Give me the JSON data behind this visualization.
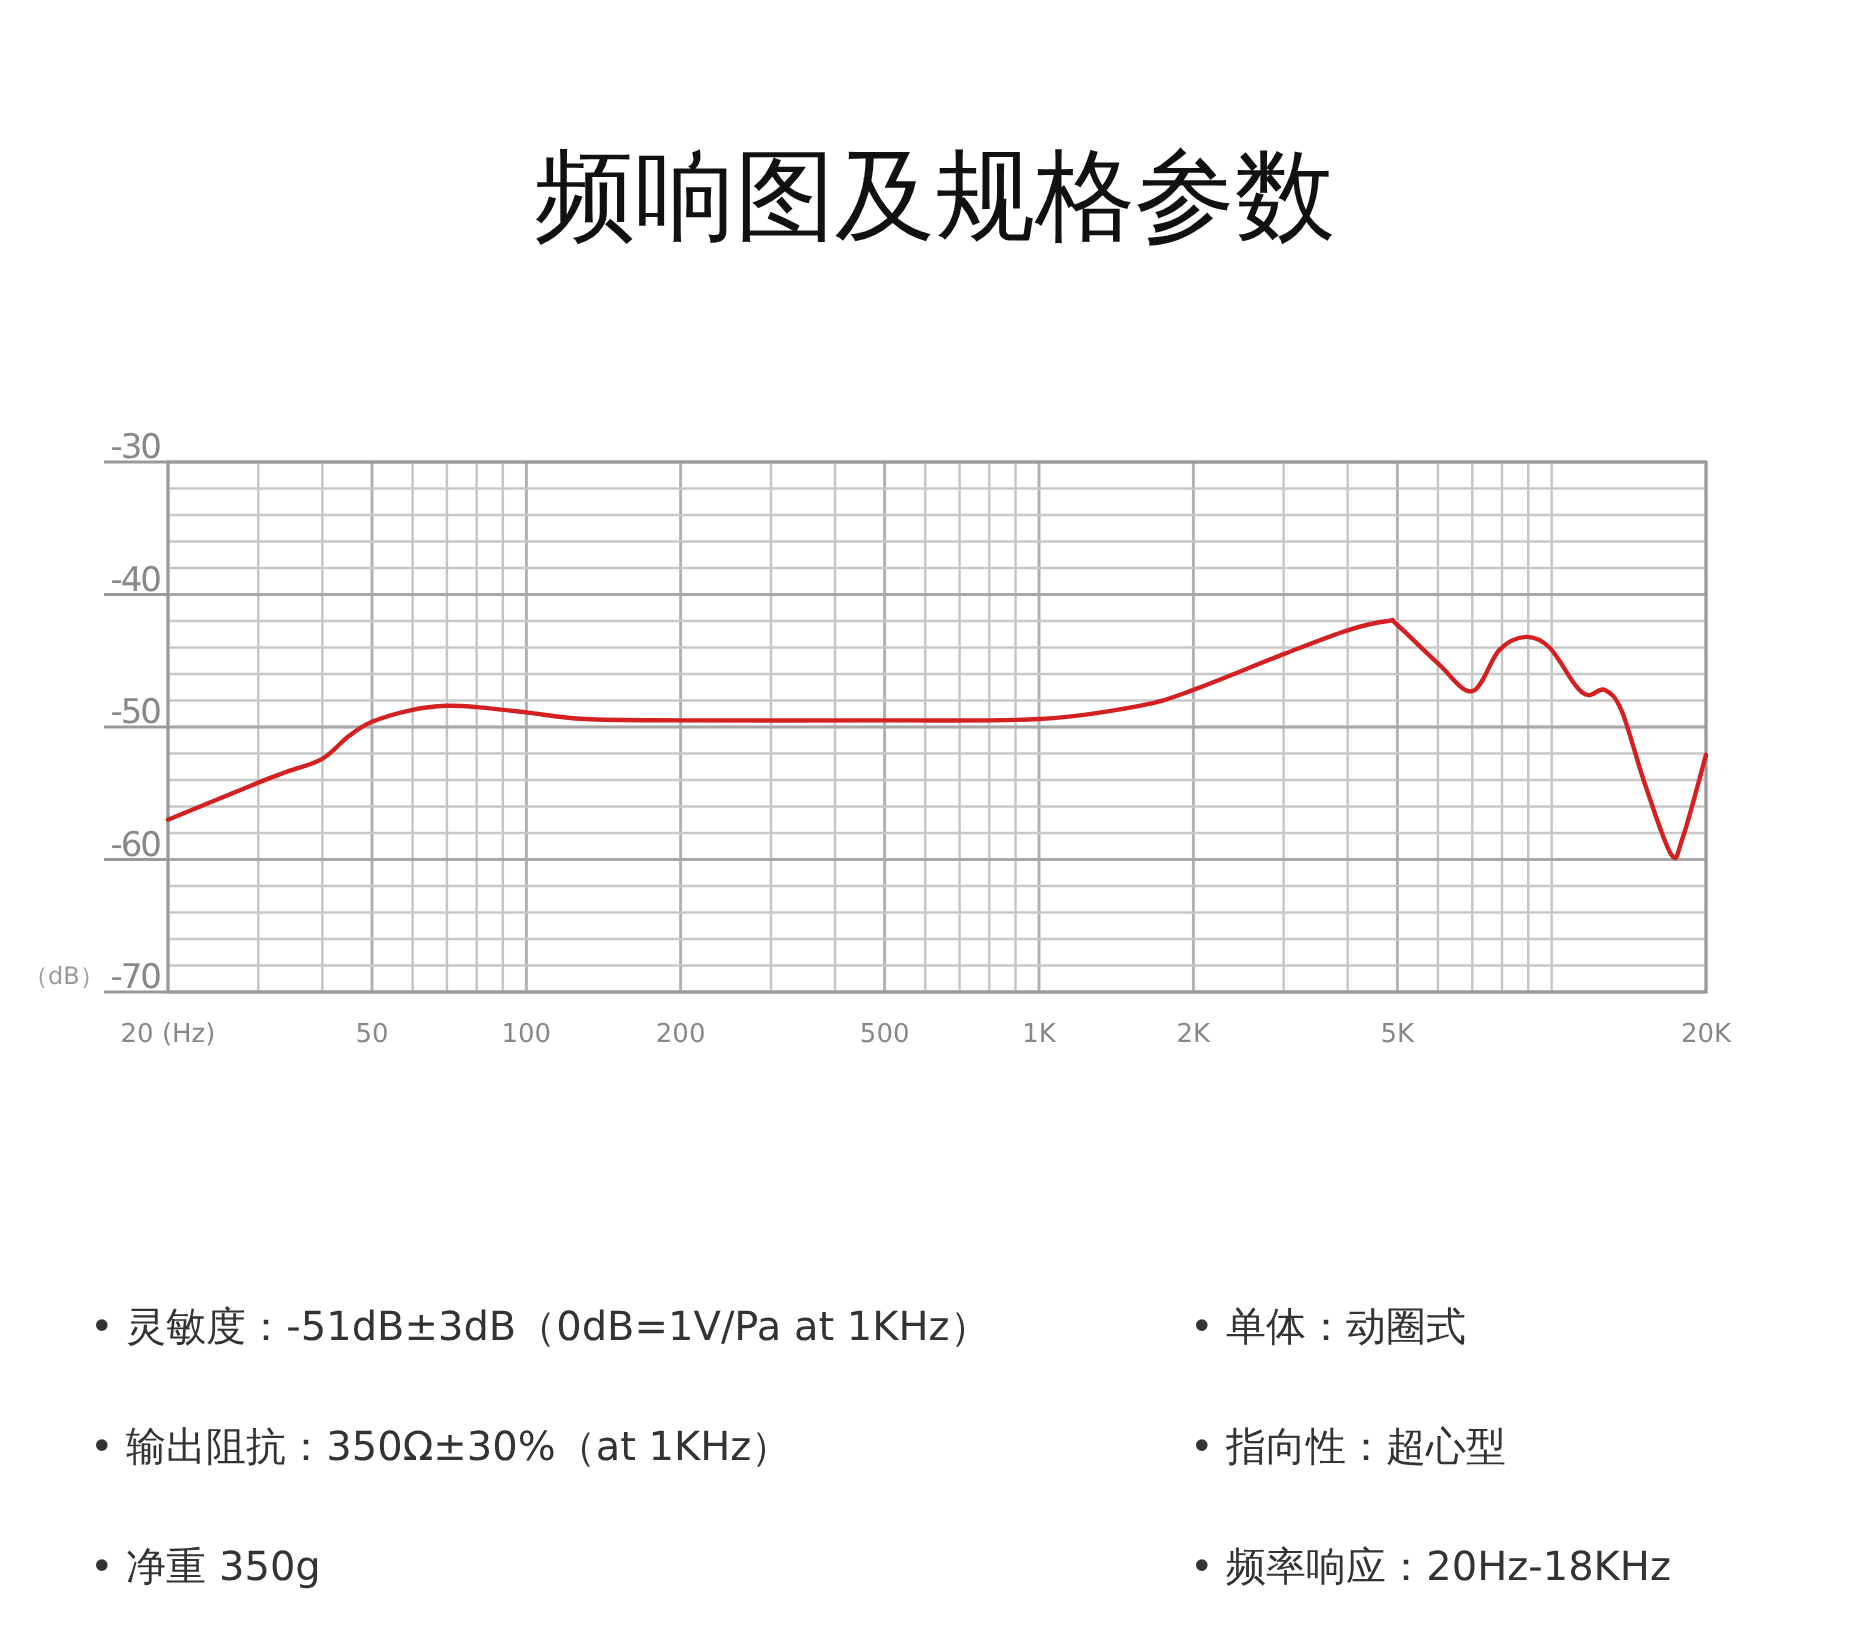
{
  "chart_data": {
    "type": "line",
    "title": "频响图及规格参数",
    "ylabel": "（dB）",
    "log": "x",
    "grid": true,
    "xlim": [
      20,
      20000
    ],
    "ylim": [
      -70,
      -30
    ],
    "xticks": [
      {
        "value": 20,
        "label": "20 (Hz)"
      },
      50,
      100,
      200,
      500,
      {
        "value": 1000,
        "label": "1K"
      },
      {
        "value": 2000,
        "label": "2K"
      },
      {
        "value": 5000,
        "label": "5K"
      },
      {
        "value": 20000,
        "label": "20K"
      }
    ],
    "yticks": [
      -30,
      -40,
      -50,
      -60,
      -70
    ],
    "series": [
      {
        "color": "#d42020",
        "x": [
          20,
          30,
          34,
          40,
          45,
          50,
          60,
          70,
          80,
          100,
          130,
          200,
          500,
          1000,
          1570,
          2000,
          3000,
          4000,
          4800,
          5000,
          6000,
          7000,
          7900,
          8900,
          9900,
          11100,
          11800,
          12700,
          13700,
          15200,
          17100,
          18000,
          20000
        ],
        "values": [
          -57.0,
          -54.2,
          -53.4,
          -52.4,
          -50.7,
          -49.6,
          -48.7,
          -48.4,
          -48.5,
          -48.9,
          -49.4,
          -49.5,
          -49.5,
          -49.4,
          -48.4,
          -47.2,
          -44.5,
          -42.7,
          -42.0,
          -42.3,
          -45.2,
          -47.3,
          -44.2,
          -43.2,
          -44.0,
          -46.8,
          -47.6,
          -47.2,
          -48.8,
          -54.3,
          -59.6,
          -58.4,
          -52.1
        ]
      }
    ],
    "annotations": [
      "• 灵敏度：-51dB±3dB（0dB=1V/Pa at 1KHz）",
      "• 单体：动圈式",
      "• 输出阻抗：350Ω±30%（at 1KHz）",
      "• 指向性：超心型",
      "• 净重 350g",
      "• 频率响应：20Hz-18KHz"
    ]
  }
}
